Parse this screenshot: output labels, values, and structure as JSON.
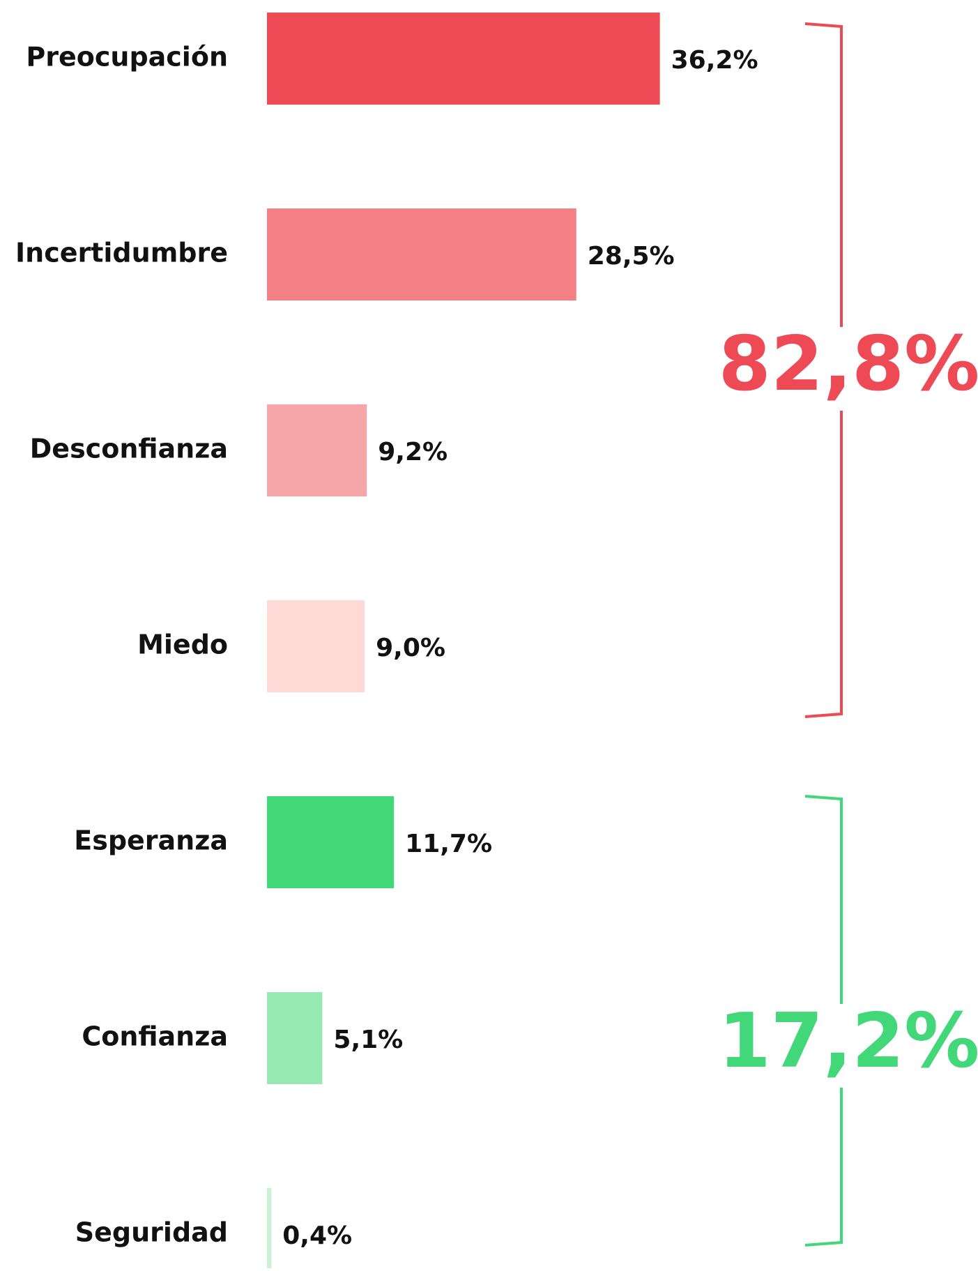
{
  "chart_data": {
    "type": "hbar",
    "categories": [
      "Preocupación",
      "Incertidumbre",
      "Desconfianza",
      "Miedo",
      "Esperanza",
      "Confianza",
      "Seguridad"
    ],
    "values": [
      36.2,
      28.5,
      9.2,
      9.0,
      11.7,
      5.1,
      0.4
    ],
    "value_labels": [
      "36,2%",
      "28,5%",
      "9,2%",
      "9,0%",
      "11,7%",
      "5,1%",
      "0,4%"
    ],
    "colors": [
      "#ee4a55",
      "#f47f84",
      "#f6a6a8",
      "#fed9d5",
      "#42d778",
      "#96e9b1",
      "#c8f3d5"
    ],
    "groups": [
      {
        "value": 82.8,
        "label": "82,8%",
        "color": "#ee4a55"
      },
      {
        "value": 17.2,
        "label": "17,2%",
        "color": "#42d778"
      }
    ]
  }
}
